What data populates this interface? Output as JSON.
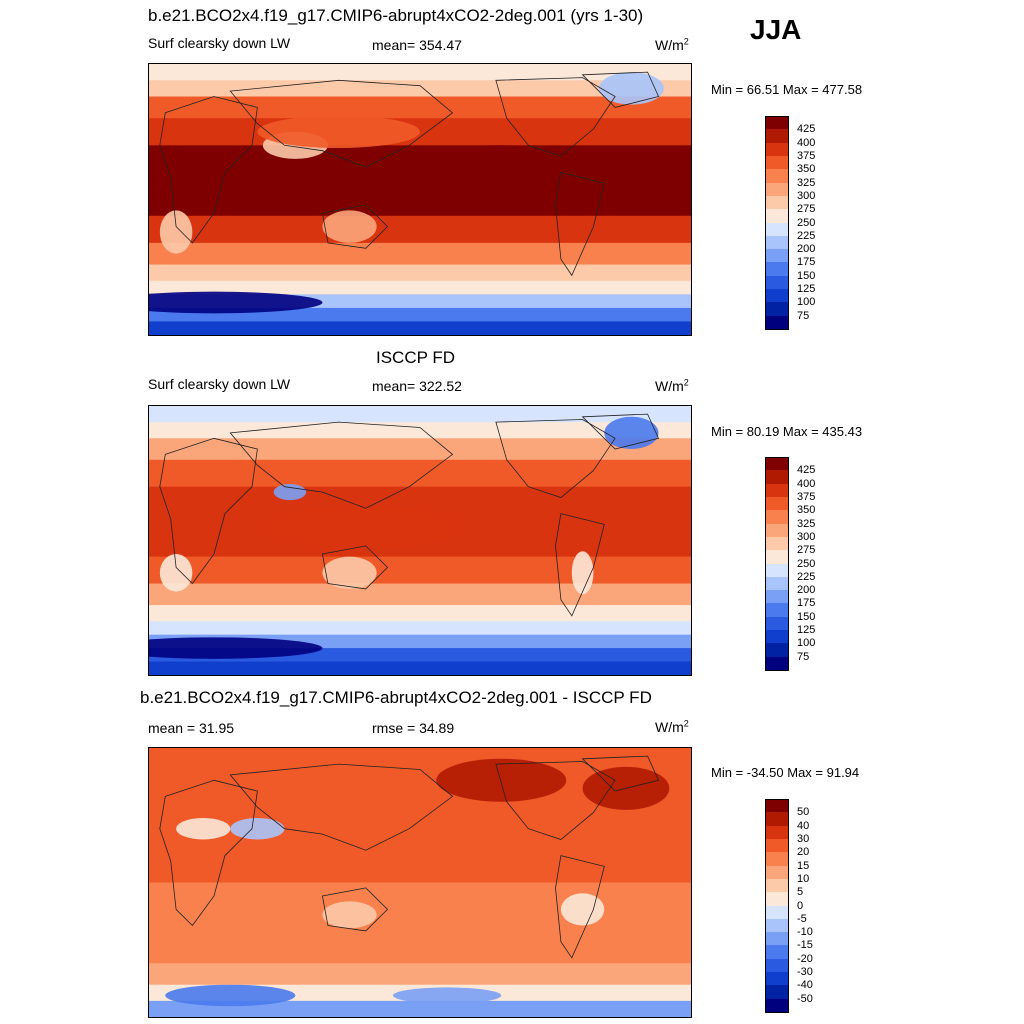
{
  "season": "JJA",
  "panels": [
    {
      "title": "b.e21.BCO2x4.f19_g17.CMIP6-abrupt4xCO2-2deg.001 (yrs 1-30)",
      "left_label": "Surf clearsky down LW",
      "center_label": "mean= 354.47",
      "units": "W/m",
      "units_sup": "2",
      "minmax": "Min =  66.51 Max = 477.58"
    },
    {
      "title": "ISCCP FD",
      "left_label": "Surf clearsky down LW",
      "center_label": "mean= 322.52",
      "units": "W/m",
      "units_sup": "2",
      "minmax": "Min =  80.19 Max = 435.43"
    },
    {
      "title": "b.e21.BCO2x4.f19_g17.CMIP6-abrupt4xCO2-2deg.001 - ISCCP FD",
      "left_label": "mean =  31.95",
      "center_label": "rmse =  34.89",
      "units": "W/m",
      "units_sup": "2",
      "minmax": "Min = -34.50 Max =  91.94"
    }
  ],
  "chart_data": [
    {
      "type": "heatmap",
      "title": "b.e21.BCO2x4.f19_g17.CMIP6-abrupt4xCO2-2deg.001 (yrs 1-30)",
      "variable": "Surf clearsky down LW",
      "units": "W/m2",
      "mean": 354.47,
      "min": 66.51,
      "max": 477.58,
      "colorbar_levels": [
        75,
        100,
        125,
        150,
        175,
        200,
        225,
        250,
        275,
        300,
        325,
        350,
        375,
        400,
        425
      ],
      "colorbar_colors": [
        "#00007f",
        "#0022a3",
        "#0f3fcc",
        "#2a5ae0",
        "#4a7aee",
        "#7aa0f5",
        "#a8c4fa",
        "#d6e4fd",
        "#fbe8d8",
        "#fcc9a9",
        "#fba57a",
        "#f8814e",
        "#ef5a28",
        "#d93410",
        "#b01a00",
        "#7f0000"
      ]
    },
    {
      "type": "heatmap",
      "title": "ISCCP FD",
      "variable": "Surf clearsky down LW",
      "units": "W/m2",
      "mean": 322.52,
      "min": 80.19,
      "max": 435.43,
      "colorbar_levels": [
        75,
        100,
        125,
        150,
        175,
        200,
        225,
        250,
        275,
        300,
        325,
        350,
        375,
        400,
        425
      ],
      "colorbar_colors": [
        "#00007f",
        "#0022a3",
        "#0f3fcc",
        "#2a5ae0",
        "#4a7aee",
        "#7aa0f5",
        "#a8c4fa",
        "#d6e4fd",
        "#fbe8d8",
        "#fcc9a9",
        "#fba57a",
        "#f8814e",
        "#ef5a28",
        "#d93410",
        "#b01a00",
        "#7f0000"
      ]
    },
    {
      "type": "heatmap",
      "title": "b.e21.BCO2x4.f19_g17.CMIP6-abrupt4xCO2-2deg.001 - ISCCP FD",
      "units": "W/m2",
      "mean": 31.95,
      "rmse": 34.89,
      "min": -34.5,
      "max": 91.94,
      "colorbar_levels": [
        -50,
        -40,
        -30,
        -20,
        -15,
        -10,
        -5,
        0,
        5,
        10,
        15,
        20,
        30,
        40,
        50
      ],
      "colorbar_colors": [
        "#00007f",
        "#0022a3",
        "#0f3fcc",
        "#2a5ae0",
        "#4a7aee",
        "#7aa0f5",
        "#a8c4fa",
        "#d6e4fd",
        "#fbe8d8",
        "#fcc9a9",
        "#fba57a",
        "#f8814e",
        "#ef5a28",
        "#d93410",
        "#b01a00",
        "#7f0000"
      ]
    }
  ]
}
